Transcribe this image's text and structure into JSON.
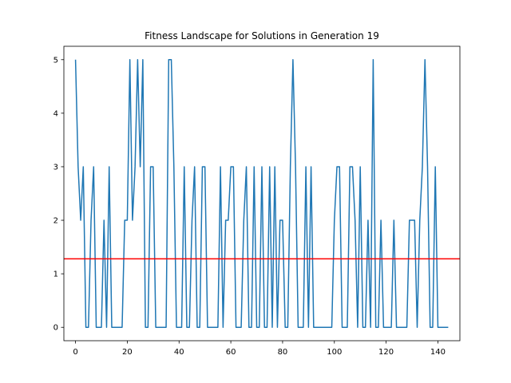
{
  "chart_data": {
    "type": "line",
    "title": "Fitness Landscape for Solutions in Generation 19",
    "xlabel": "",
    "ylabel": "",
    "xlim": [
      -4.5,
      148.5
    ],
    "ylim": [
      -0.25,
      5.25
    ],
    "x_ticks": [
      0,
      20,
      40,
      60,
      80,
      100,
      120,
      140
    ],
    "y_ticks": [
      0,
      1,
      2,
      3,
      4,
      5
    ],
    "grid": false,
    "legend": "none",
    "series": [
      {
        "color": "#1f77b4",
        "x": [
          0,
          1,
          2,
          3,
          4,
          5,
          6,
          7,
          8,
          9,
          10,
          11,
          12,
          13,
          14,
          15,
          16,
          17,
          18,
          19,
          20,
          21,
          22,
          23,
          24,
          25,
          26,
          27,
          28,
          29,
          30,
          31,
          32,
          33,
          34,
          35,
          36,
          37,
          38,
          39,
          40,
          41,
          42,
          43,
          44,
          45,
          46,
          47,
          48,
          49,
          50,
          51,
          52,
          53,
          54,
          55,
          56,
          57,
          58,
          59,
          60,
          61,
          62,
          63,
          64,
          65,
          66,
          67,
          68,
          69,
          70,
          71,
          72,
          73,
          74,
          75,
          76,
          77,
          78,
          79,
          80,
          81,
          82,
          83,
          84,
          85,
          86,
          87,
          88,
          89,
          90,
          91,
          92,
          93,
          94,
          95,
          96,
          97,
          98,
          99,
          100,
          101,
          102,
          103,
          104,
          105,
          106,
          107,
          108,
          109,
          110,
          111,
          112,
          113,
          114,
          115,
          116,
          117,
          118,
          119,
          120,
          121,
          122,
          123,
          124,
          125,
          126,
          127,
          128,
          129,
          130,
          131,
          132,
          133,
          134,
          135,
          136,
          137,
          138,
          139,
          140,
          141,
          142,
          143,
          144
        ],
        "y": [
          5,
          3,
          2,
          3,
          0,
          0,
          2,
          3,
          0,
          0,
          0,
          2,
          0,
          3,
          0,
          0,
          0,
          0,
          0,
          2,
          2,
          5,
          2,
          3,
          5,
          3,
          5,
          0,
          0,
          3,
          3,
          0,
          0,
          0,
          0,
          0,
          5,
          5,
          3,
          0,
          0,
          0,
          3,
          0,
          0,
          2,
          3,
          0,
          0,
          3,
          3,
          0,
          0,
          0,
          0,
          0,
          3,
          0,
          2,
          2,
          3,
          3,
          0,
          0,
          0,
          2,
          3,
          0,
          0,
          3,
          0,
          0,
          3,
          0,
          0,
          3,
          0,
          3,
          0,
          2,
          2,
          0,
          0,
          3,
          5,
          3,
          0,
          0,
          0,
          3,
          0,
          3,
          0,
          0,
          0,
          0,
          0,
          0,
          0,
          0,
          2,
          3,
          3,
          0,
          0,
          0,
          3,
          3,
          2,
          0,
          3,
          0,
          0,
          2,
          0,
          5,
          0,
          0,
          2,
          0,
          0,
          0,
          0,
          2,
          0,
          0,
          0,
          0,
          0,
          2,
          2,
          2,
          0,
          2,
          3,
          5,
          3,
          0,
          0,
          3,
          0,
          0,
          0,
          0,
          0
        ]
      }
    ],
    "reference_line": {
      "orientation": "horizontal",
      "y": 1.28,
      "color": "#ff0000"
    }
  }
}
